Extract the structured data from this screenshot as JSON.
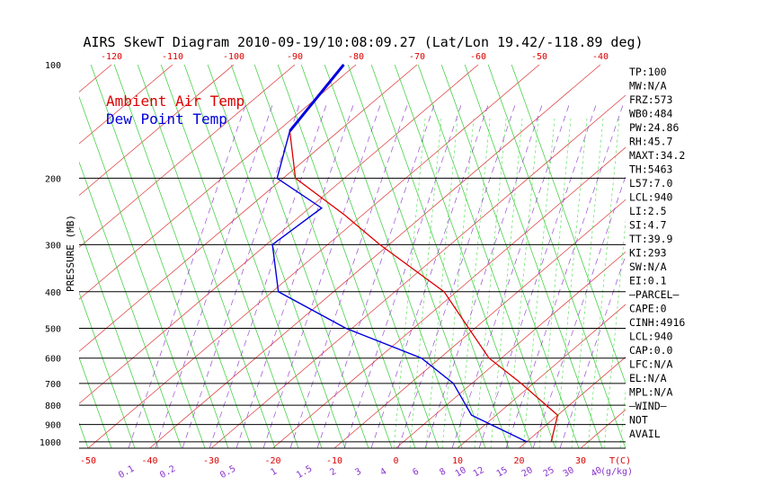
{
  "chart_data": {
    "type": "line",
    "title": "AIRS SkewT Diagram 2010-09-19/10:08:09.27 (Lat/Lon 19.42/-118.89 deg)",
    "ylabel": "PRESSURE (MB)",
    "xlabel_bottom_unit": "T(C)",
    "mixing_ratio_unit": "(g/kg)",
    "legend": [
      {
        "name": "Ambient Air Temp",
        "color": "#dd0000"
      },
      {
        "name": "Dew Point Temp",
        "color": "#0000dd"
      }
    ],
    "pressure_ticks": [
      100,
      200,
      300,
      400,
      500,
      600,
      700,
      800,
      900,
      1000
    ],
    "top_temp_ticks": [
      -120,
      -110,
      -100,
      -90,
      -80,
      -70,
      -60,
      -50,
      -40
    ],
    "bottom_temp_ticks": [
      -50,
      -40,
      -30,
      -20,
      -10,
      0,
      10,
      20,
      30
    ],
    "mixing_ratio_labels": [
      "0.1",
      "0.2",
      "0.5",
      "1",
      "1.5",
      "2",
      "3",
      "4",
      "6",
      "8",
      "10",
      "12",
      "15",
      "20",
      "25",
      "30",
      "40"
    ],
    "ylim": [
      1040,
      100
    ],
    "series": [
      {
        "name": "Ambient Air Temp",
        "color": "#dd0000",
        "points": [
          {
            "p": 100,
            "t": -82
          },
          {
            "p": 150,
            "t": -78
          },
          {
            "p": 200,
            "t": -68
          },
          {
            "p": 250,
            "t": -53
          },
          {
            "p": 300,
            "t": -41.5
          },
          {
            "p": 400,
            "t": -22
          },
          {
            "p": 500,
            "t": -11
          },
          {
            "p": 600,
            "t": -2
          },
          {
            "p": 700,
            "t": 8
          },
          {
            "p": 850,
            "t": 20
          },
          {
            "p": 1000,
            "t": 24
          }
        ]
      },
      {
        "name": "Dew Point Temp",
        "color": "#0000dd",
        "points": [
          {
            "p": 100,
            "t": -82
          },
          {
            "p": 150,
            "t": -78
          },
          {
            "p": 200,
            "t": -71
          },
          {
            "p": 240,
            "t": -58
          },
          {
            "p": 300,
            "t": -59
          },
          {
            "p": 400,
            "t": -49
          },
          {
            "p": 500,
            "t": -31
          },
          {
            "p": 600,
            "t": -13
          },
          {
            "p": 700,
            "t": -3
          },
          {
            "p": 850,
            "t": 6
          },
          {
            "p": 1000,
            "t": 20
          }
        ]
      }
    ]
  },
  "indices": [
    "TP:100",
    "MW:N/A",
    "FRZ:573",
    "WB0:484",
    "PW:24.86",
    "RH:45.7",
    "MAXT:34.2",
    "TH:5463",
    "L57:7.0",
    "LCL:940",
    "LI:2.5",
    "SI:4.7",
    "TT:39.9",
    "KI:293",
    "SW:N/A",
    "EI:0.1",
    "—PARCEL—",
    "CAPE:0",
    "CINH:4916",
    "LCL:940",
    "CAP:0.0",
    "LFC:N/A",
    "EL:N/A",
    "MPL:N/A",
    "—WIND—",
    "NOT",
    "AVAIL"
  ]
}
